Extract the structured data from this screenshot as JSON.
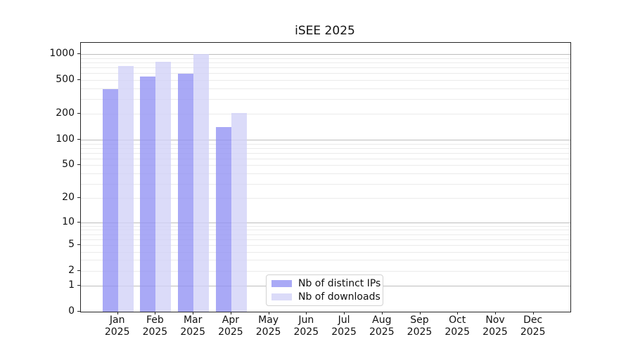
{
  "figure": {
    "background": "#ffffff",
    "axis_color": "#262626",
    "text_color": "#111111",
    "major_grid_color": "#bdbdbd",
    "minor_grid_color": "#ebebeb"
  },
  "chart_data": {
    "type": "bar",
    "title": "iSEE 2025",
    "x_categories": [
      "Jan",
      "Feb",
      "Mar",
      "Apr",
      "May",
      "Jun",
      "Jul",
      "Aug",
      "Sep",
      "Oct",
      "Nov",
      "Dec"
    ],
    "x_year": "2025",
    "y_scale": "log1p",
    "y_ticks": [
      0,
      1,
      2,
      5,
      10,
      20,
      50,
      100,
      200,
      500,
      1000
    ],
    "ylim": [
      0,
      1360
    ],
    "grid": {
      "major_lines": [
        1,
        10,
        100,
        1000
      ],
      "minor_lines": [
        2,
        3,
        4,
        5,
        6,
        7,
        8,
        9,
        20,
        30,
        40,
        50,
        60,
        70,
        80,
        90,
        200,
        300,
        400,
        500,
        600,
        700,
        800,
        900
      ]
    },
    "series": [
      {
        "name": "Nb of distinct IPs",
        "color": "rgba(145,145,243,0.78)",
        "values": [
          390,
          550,
          590,
          140,
          null,
          null,
          null,
          null,
          null,
          null,
          null,
          null
        ]
      },
      {
        "name": "Nb of downloads",
        "color": "rgba(209,209,247,0.78)",
        "values": [
          730,
          820,
          1000,
          205,
          null,
          null,
          null,
          null,
          null,
          null,
          null,
          null
        ]
      }
    ],
    "legend": {
      "position": "lower center",
      "items": [
        "Nb of distinct IPs",
        "Nb of downloads"
      ]
    }
  }
}
